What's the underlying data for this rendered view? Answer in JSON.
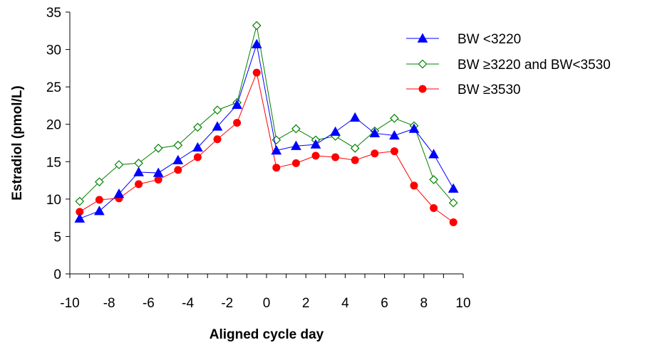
{
  "chart_data": {
    "type": "line",
    "xlabel": "Aligned cycle day",
    "ylabel": "Estradiol (pmol/L)",
    "xlim": [
      -10,
      10
    ],
    "ylim": [
      0,
      35
    ],
    "xticks": [
      -10,
      -8,
      -6,
      -4,
      -2,
      0,
      2,
      4,
      6,
      8,
      10
    ],
    "yticks": [
      0,
      5,
      10,
      15,
      20,
      25,
      30,
      35
    ],
    "grid": false,
    "legend_position": "top-right",
    "x": [
      -9.5,
      -8.5,
      -7.5,
      -6.5,
      -5.5,
      -4.5,
      -3.5,
      -2.5,
      -1.5,
      -0.5,
      0.5,
      1.5,
      2.5,
      3.5,
      4.5,
      5.5,
      6.5,
      7.5,
      8.5,
      9.5
    ],
    "series": [
      {
        "name": "BW <3220",
        "color": "#0000FF",
        "marker": "triangle-filled",
        "values": [
          7.4,
          8.4,
          10.7,
          13.6,
          13.5,
          15.2,
          16.9,
          19.7,
          22.6,
          30.7,
          16.5,
          17.1,
          17.3,
          19.0,
          20.9,
          18.8,
          18.5,
          19.4,
          16.0,
          11.4
        ]
      },
      {
        "name": "BW ≥3220 and BW<3530",
        "color": "#008000",
        "marker": "diamond-open",
        "values": [
          9.7,
          12.3,
          14.6,
          14.8,
          16.8,
          17.2,
          19.6,
          21.9,
          22.9,
          33.2,
          17.9,
          19.4,
          17.9,
          18.4,
          16.8,
          19.1,
          20.8,
          19.8,
          12.6,
          9.5
        ]
      },
      {
        "name": "BW ≥3530",
        "color": "#FF0000",
        "marker": "circle-filled",
        "values": [
          8.3,
          9.9,
          10.1,
          12.0,
          12.6,
          13.9,
          15.6,
          18.0,
          20.2,
          26.9,
          14.2,
          14.8,
          15.8,
          15.6,
          15.2,
          16.1,
          16.4,
          11.8,
          8.8,
          6.9
        ]
      }
    ]
  }
}
